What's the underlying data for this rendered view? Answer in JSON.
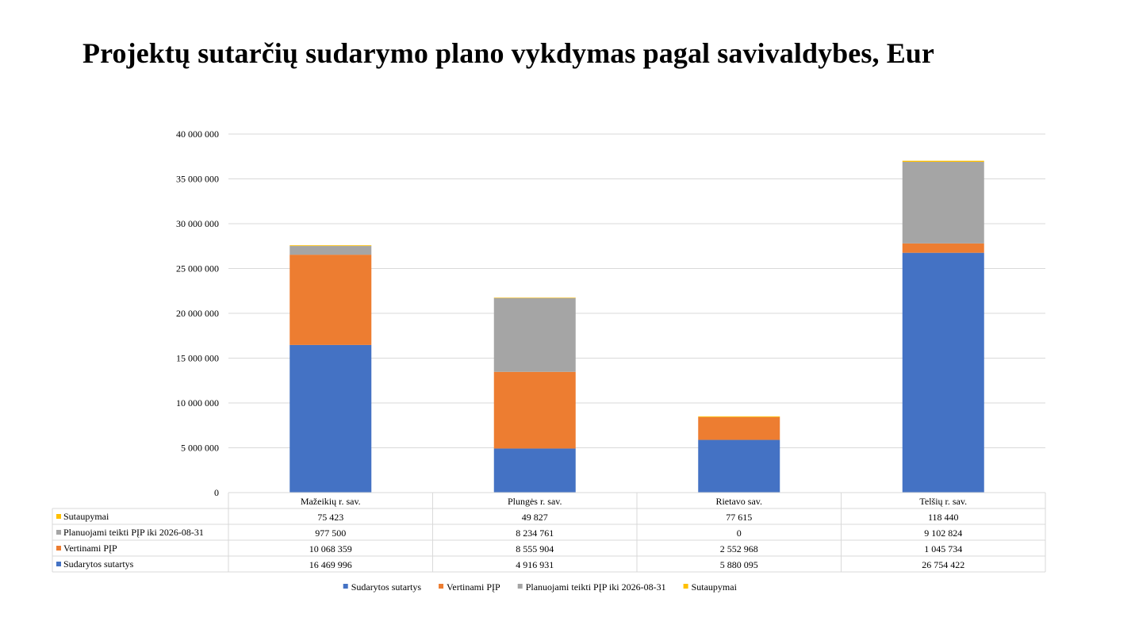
{
  "title": "Projektų sutarčių sudarymo plano vykdymas pagal savivaldybes, Eur",
  "colors": {
    "accent_blue": "#4472C4",
    "accent_orange": "#ED7D31",
    "accent_gray": "#A5A5A5",
    "accent_gold": "#FFC000",
    "grid": "#D9D9D9"
  },
  "chart_data": {
    "type": "bar",
    "stacked": true,
    "title": "Projektų sutarčių sudarymo plano vykdymas pagal savivaldybes, Eur",
    "xlabel": "",
    "ylabel": "",
    "ylim": [
      0,
      40000000
    ],
    "ytick_step": 5000000,
    "ytick_labels": [
      "0",
      "5 000 000",
      "10 000 000",
      "15 000 000",
      "20 000 000",
      "25 000 000",
      "30 000 000",
      "35 000 000",
      "40 000 000"
    ],
    "grid": true,
    "legend_position": "bottom",
    "data_table": true,
    "categories": [
      "Mažeikių r. sav.",
      "Plungės r. sav.",
      "Rietavo sav.",
      "Telšių r. sav."
    ],
    "series": [
      {
        "name": "Sudarytos sutartys",
        "color": "#4472C4",
        "values": [
          16469996,
          4916931,
          5880095,
          26754422
        ],
        "labels": [
          "16 469 996",
          "4 916 931",
          "5 880 095",
          "26 754 422"
        ]
      },
      {
        "name": "Vertinami PĮP",
        "color": "#ED7D31",
        "values": [
          10068359,
          8555904,
          2552968,
          1045734
        ],
        "labels": [
          "10 068 359",
          "8 555 904",
          "2 552 968",
          "1 045 734"
        ]
      },
      {
        "name": "Planuojami  teikti PĮP iki 2026-08-31",
        "color": "#A5A5A5",
        "values": [
          977500,
          8234761,
          0,
          9102824
        ],
        "labels": [
          "977 500",
          "8 234 761",
          "0",
          "9 102 824"
        ]
      },
      {
        "name": "Sutaupymai",
        "color": "#FFC000",
        "values": [
          75423,
          49827,
          77615,
          118440
        ],
        "labels": [
          "75 423",
          "49 827",
          "77 615",
          "118 440"
        ]
      }
    ]
  }
}
